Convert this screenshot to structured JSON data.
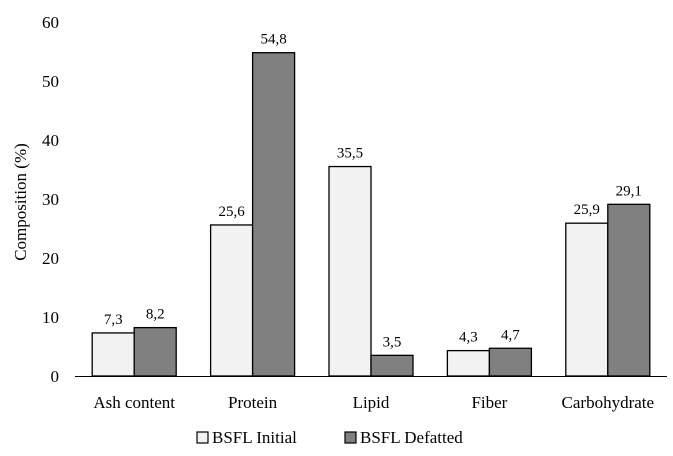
{
  "chart_data": {
    "type": "bar",
    "categories": [
      "Ash content",
      "Protein",
      "Lipid",
      "Fiber",
      "Carbohydrate"
    ],
    "series": [
      {
        "name": "BSFL Initial",
        "values": [
          7.3,
          25.6,
          35.5,
          4.3,
          25.9
        ],
        "labels": [
          "7,3",
          "25,6",
          "35,5",
          "4,3",
          "25,9"
        ],
        "color": "#f2f2f2"
      },
      {
        "name": "BSFL Defatted",
        "values": [
          8.2,
          54.8,
          3.5,
          4.7,
          29.1
        ],
        "labels": [
          "8,2",
          "54,8",
          "3,5",
          "4,7",
          "29,1"
        ],
        "color": "#808080"
      }
    ],
    "ylabel": "Composition (%)",
    "xlabel": "",
    "ylim": [
      0,
      60
    ],
    "yticks": [
      0,
      10,
      20,
      30,
      40,
      50,
      60
    ],
    "grid": false,
    "legend_position": "bottom"
  }
}
